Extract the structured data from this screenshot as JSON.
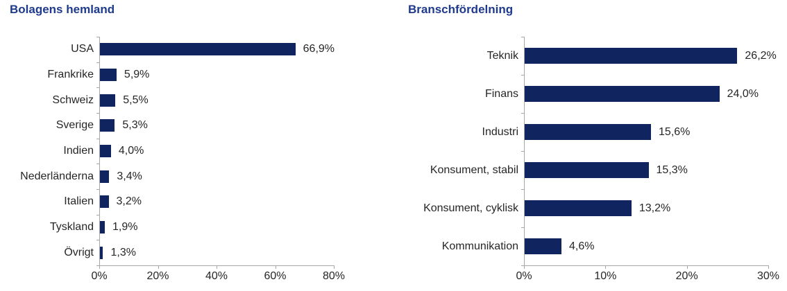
{
  "page": {
    "background": "#ffffff"
  },
  "chart_data": [
    {
      "type": "bar",
      "orientation": "horizontal",
      "title": "Bolagens hemland",
      "categories": [
        "USA",
        "Frankrike",
        "Schweiz",
        "Sverige",
        "Indien",
        "Nederländerna",
        "Italien",
        "Tyskland",
        "Övrigt"
      ],
      "values": [
        66.9,
        5.9,
        5.5,
        5.3,
        4.0,
        3.4,
        3.2,
        1.9,
        1.3
      ],
      "value_labels": [
        "66,9%",
        "5,9%",
        "5,5%",
        "5,3%",
        "4,0%",
        "3,4%",
        "3,2%",
        "1,9%",
        "1,3%"
      ],
      "xlabel": "",
      "ylabel": "",
      "xlim": [
        0,
        80
      ],
      "xticks": [
        0,
        20,
        40,
        60,
        80
      ],
      "xtick_labels": [
        "0%",
        "20%",
        "40%",
        "60%",
        "80%"
      ],
      "grid": false,
      "legend": "none",
      "bar_color": "#102560",
      "axis_color": "#a6a6a6",
      "title_color": "#1e3a8c",
      "label_color": "#262626"
    },
    {
      "type": "bar",
      "orientation": "horizontal",
      "title": "Branschfördelning",
      "categories": [
        "Teknik",
        "Finans",
        "Industri",
        "Konsument, stabil",
        "Konsument, cyklisk",
        "Kommunikation"
      ],
      "values": [
        26.2,
        24.0,
        15.6,
        15.3,
        13.2,
        4.6
      ],
      "value_labels": [
        "26,2%",
        "24,0%",
        "15,6%",
        "15,3%",
        "13,2%",
        "4,6%"
      ],
      "xlabel": "",
      "ylabel": "",
      "xlim": [
        0,
        30
      ],
      "xticks": [
        0,
        10,
        20,
        30
      ],
      "xtick_labels": [
        "0%",
        "10%",
        "20%",
        "30%"
      ],
      "grid": false,
      "legend": "none",
      "bar_color": "#102560",
      "axis_color": "#a6a6a6",
      "title_color": "#1e3a8c",
      "label_color": "#262626"
    }
  ]
}
